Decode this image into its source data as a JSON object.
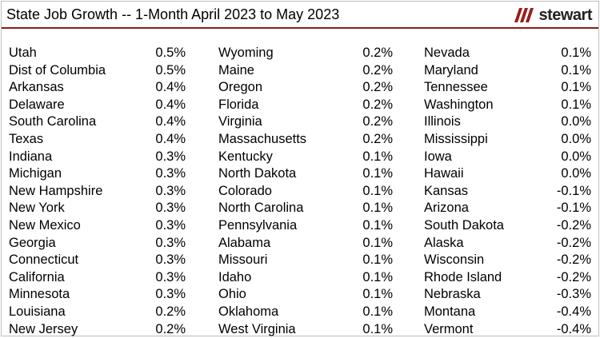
{
  "title": "State Job Growth -- 1-Month April 2023 to May 2023",
  "logo": {
    "text": "stewart",
    "mark_color": "#9b1c1c",
    "icon": "stewart-logo-icon"
  },
  "rows": [
    {
      "c1n": "Utah",
      "c1v": "0.5%",
      "c2n": "Wyoming",
      "c2v": "0.2%",
      "c3n": "Nevada",
      "c3v": "0.1%"
    },
    {
      "c1n": "Dist of Columbia",
      "c1v": "0.5%",
      "c2n": "Maine",
      "c2v": "0.2%",
      "c3n": "Maryland",
      "c3v": "0.1%"
    },
    {
      "c1n": "Arkansas",
      "c1v": "0.4%",
      "c2n": "Oregon",
      "c2v": "0.2%",
      "c3n": "Tennessee",
      "c3v": "0.1%"
    },
    {
      "c1n": "Delaware",
      "c1v": "0.4%",
      "c2n": "Florida",
      "c2v": "0.2%",
      "c3n": "Washington",
      "c3v": "0.1%"
    },
    {
      "c1n": "South Carolina",
      "c1v": "0.4%",
      "c2n": "Virginia",
      "c2v": "0.2%",
      "c3n": "Illinois",
      "c3v": "0.0%"
    },
    {
      "c1n": "Texas",
      "c1v": "0.4%",
      "c2n": "Massachusetts",
      "c2v": "0.2%",
      "c3n": "Mississippi",
      "c3v": "0.0%"
    },
    {
      "c1n": "Indiana",
      "c1v": "0.3%",
      "c2n": "Kentucky",
      "c2v": "0.1%",
      "c3n": "Iowa",
      "c3v": "0.0%"
    },
    {
      "c1n": "Michigan",
      "c1v": "0.3%",
      "c2n": "North Dakota",
      "c2v": "0.1%",
      "c3n": "Hawaii",
      "c3v": "0.0%"
    },
    {
      "c1n": "New Hampshire",
      "c1v": "0.3%",
      "c2n": "Colorado",
      "c2v": "0.1%",
      "c3n": "Kansas",
      "c3v": "-0.1%"
    },
    {
      "c1n": "New York",
      "c1v": "0.3%",
      "c2n": "North Carolina",
      "c2v": "0.1%",
      "c3n": "Arizona",
      "c3v": "-0.1%"
    },
    {
      "c1n": "New Mexico",
      "c1v": "0.3%",
      "c2n": "Pennsylvania",
      "c2v": "0.1%",
      "c3n": "South Dakota",
      "c3v": "-0.2%"
    },
    {
      "c1n": "Georgia",
      "c1v": "0.3%",
      "c2n": "Alabama",
      "c2v": "0.1%",
      "c3n": "Alaska",
      "c3v": "-0.2%"
    },
    {
      "c1n": "Connecticut",
      "c1v": "0.3%",
      "c2n": "Missouri",
      "c2v": "0.1%",
      "c3n": "Wisconsin",
      "c3v": "-0.2%"
    },
    {
      "c1n": "California",
      "c1v": "0.3%",
      "c2n": "Idaho",
      "c2v": "0.1%",
      "c3n": "Rhode Island",
      "c3v": "-0.2%"
    },
    {
      "c1n": "Minnesota",
      "c1v": "0.3%",
      "c2n": "Ohio",
      "c2v": "0.1%",
      "c3n": "Nebraska",
      "c3v": "-0.3%"
    },
    {
      "c1n": "Louisiana",
      "c1v": "0.2%",
      "c2n": "Oklahoma",
      "c2v": "0.1%",
      "c3n": "Montana",
      "c3v": "-0.4%"
    },
    {
      "c1n": "New Jersey",
      "c1v": "0.2%",
      "c2n": "West Virginia",
      "c2v": "0.1%",
      "c3n": "Vermont",
      "c3v": "-0.4%"
    }
  ]
}
